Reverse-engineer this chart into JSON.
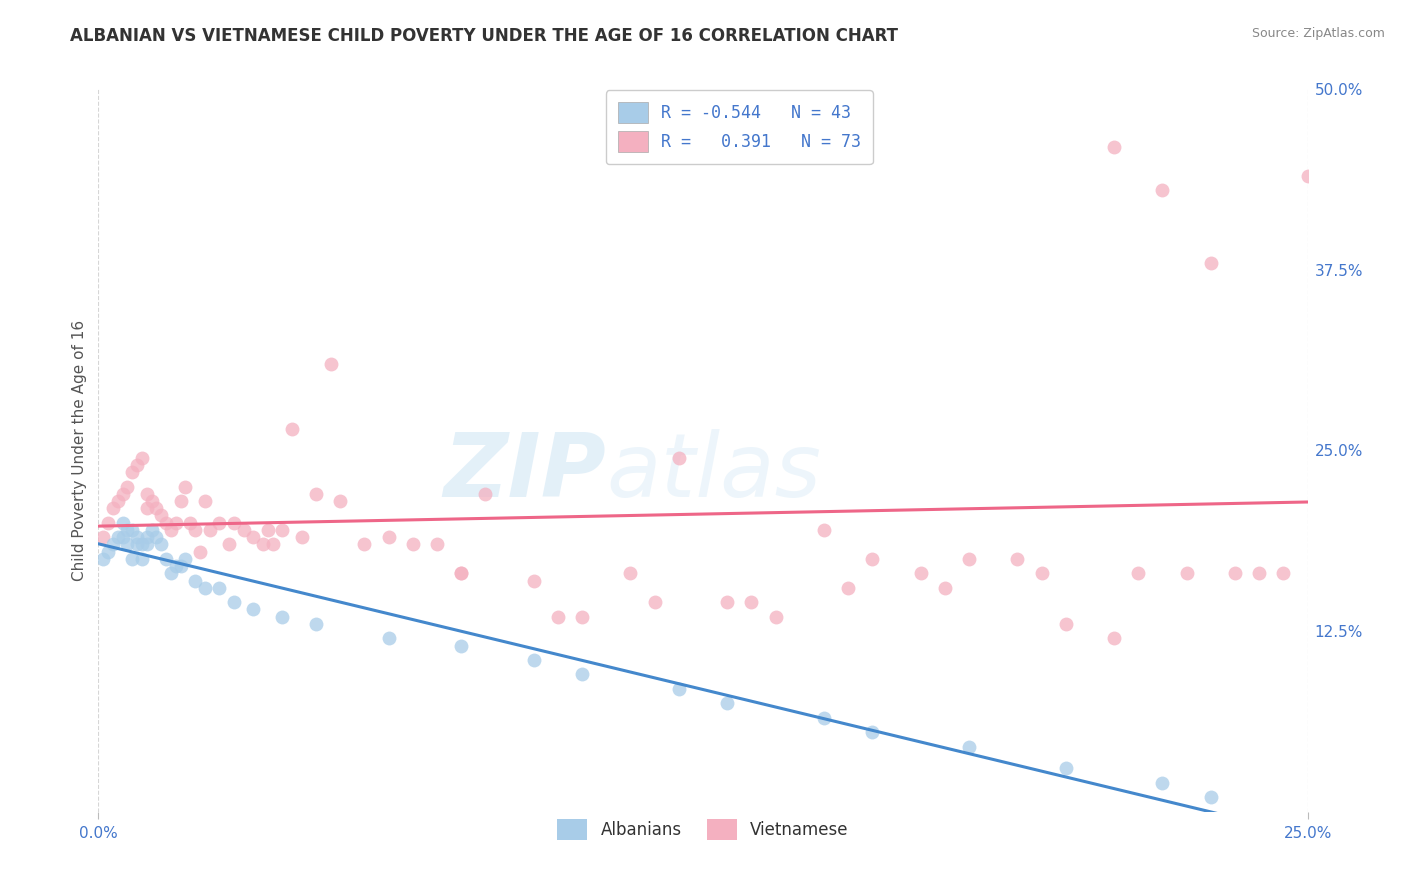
{
  "title": "ALBANIAN VS VIETNAMESE CHILD POVERTY UNDER THE AGE OF 16 CORRELATION CHART",
  "source": "Source: ZipAtlas.com",
  "ylabel_label": "Child Poverty Under the Age of 16",
  "watermark_zip": "ZIP",
  "watermark_atlas": "atlas",
  "albanian_color": "#a8cce8",
  "vietnamese_color": "#f4b0c0",
  "albanian_line_color": "#4488cc",
  "vietnamese_line_color": "#ee6688",
  "label_color": "#4477cc",
  "background_color": "#ffffff",
  "grid_color": "#cccccc",
  "xlim": [
    0.0,
    0.25
  ],
  "ylim": [
    0.0,
    0.5
  ],
  "albanians_x": [
    0.001,
    0.002,
    0.003,
    0.004,
    0.005,
    0.005,
    0.006,
    0.006,
    0.007,
    0.007,
    0.008,
    0.008,
    0.009,
    0.009,
    0.01,
    0.01,
    0.011,
    0.012,
    0.013,
    0.014,
    0.015,
    0.016,
    0.017,
    0.018,
    0.02,
    0.022,
    0.025,
    0.028,
    0.032,
    0.038,
    0.045,
    0.06,
    0.075,
    0.09,
    0.1,
    0.12,
    0.13,
    0.15,
    0.16,
    0.18,
    0.2,
    0.22,
    0.23
  ],
  "albanians_y": [
    0.175,
    0.18,
    0.185,
    0.19,
    0.19,
    0.2,
    0.195,
    0.185,
    0.195,
    0.175,
    0.185,
    0.19,
    0.185,
    0.175,
    0.19,
    0.185,
    0.195,
    0.19,
    0.185,
    0.175,
    0.165,
    0.17,
    0.17,
    0.175,
    0.16,
    0.155,
    0.155,
    0.145,
    0.14,
    0.135,
    0.13,
    0.12,
    0.115,
    0.105,
    0.095,
    0.085,
    0.075,
    0.065,
    0.055,
    0.045,
    0.03,
    0.02,
    0.01
  ],
  "vietnamese_x": [
    0.001,
    0.002,
    0.003,
    0.004,
    0.005,
    0.006,
    0.007,
    0.008,
    0.009,
    0.01,
    0.01,
    0.011,
    0.012,
    0.013,
    0.014,
    0.015,
    0.016,
    0.017,
    0.018,
    0.019,
    0.02,
    0.021,
    0.022,
    0.023,
    0.025,
    0.027,
    0.028,
    0.03,
    0.032,
    0.034,
    0.035,
    0.036,
    0.038,
    0.04,
    0.042,
    0.045,
    0.048,
    0.05,
    0.055,
    0.06,
    0.065,
    0.07,
    0.075,
    0.08,
    0.09,
    0.1,
    0.11,
    0.12,
    0.13,
    0.14,
    0.15,
    0.16,
    0.17,
    0.18,
    0.19,
    0.2,
    0.21,
    0.21,
    0.215,
    0.22,
    0.225,
    0.23,
    0.235,
    0.24,
    0.245,
    0.25,
    0.195,
    0.175,
    0.155,
    0.135,
    0.115,
    0.095,
    0.075
  ],
  "vietnamese_y": [
    0.19,
    0.2,
    0.21,
    0.215,
    0.22,
    0.225,
    0.235,
    0.24,
    0.245,
    0.21,
    0.22,
    0.215,
    0.21,
    0.205,
    0.2,
    0.195,
    0.2,
    0.215,
    0.225,
    0.2,
    0.195,
    0.18,
    0.215,
    0.195,
    0.2,
    0.185,
    0.2,
    0.195,
    0.19,
    0.185,
    0.195,
    0.185,
    0.195,
    0.265,
    0.19,
    0.22,
    0.31,
    0.215,
    0.185,
    0.19,
    0.185,
    0.185,
    0.165,
    0.22,
    0.16,
    0.135,
    0.165,
    0.245,
    0.145,
    0.135,
    0.195,
    0.175,
    0.165,
    0.175,
    0.175,
    0.13,
    0.12,
    0.46,
    0.165,
    0.43,
    0.165,
    0.38,
    0.165,
    0.165,
    0.165,
    0.44,
    0.165,
    0.155,
    0.155,
    0.145,
    0.145,
    0.135,
    0.165
  ]
}
